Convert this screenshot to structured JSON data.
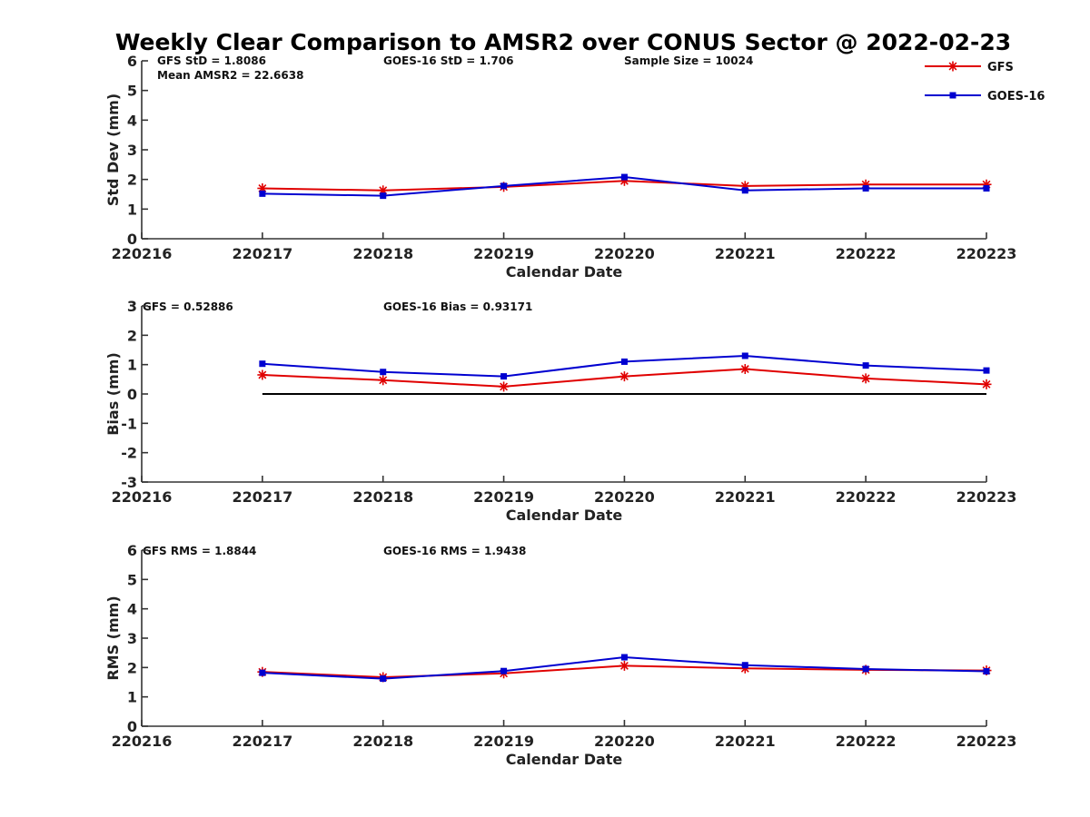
{
  "title": "Weekly Clear Comparison to AMSR2 over CONUS Sector @ 2022-02-23",
  "legend": [
    {
      "name": "GFS",
      "color": "#e00000",
      "marker": "star"
    },
    {
      "name": "GOES-16",
      "color": "#0000d0",
      "marker": "square"
    }
  ],
  "chart_data": [
    {
      "type": "line",
      "xlabel": "Calendar Date",
      "ylabel": "Std Dev (mm)",
      "x_ticks": [
        "220216",
        "220217",
        "220218",
        "220219",
        "220220",
        "220221",
        "220222",
        "220223"
      ],
      "ylim": [
        0,
        6
      ],
      "y_ticks": [
        "0",
        "1",
        "2",
        "3",
        "4",
        "5",
        "6"
      ],
      "annotations": [
        "GFS StD = 1.8086",
        "GOES-16 StD = 1.706",
        "Sample Size = 10024",
        "Mean AMSR2 = 22.6638"
      ],
      "reference_line": null,
      "series": [
        {
          "name": "GFS",
          "color": "#e00000",
          "marker": "star",
          "x": [
            "220217",
            "220218",
            "220219",
            "220220",
            "220221",
            "220222",
            "220223"
          ],
          "values": [
            1.7,
            1.63,
            1.75,
            1.95,
            1.78,
            1.83,
            1.83
          ]
        },
        {
          "name": "GOES-16",
          "color": "#0000d0",
          "marker": "square",
          "x": [
            "220217",
            "220218",
            "220219",
            "220220",
            "220221",
            "220222",
            "220223"
          ],
          "values": [
            1.52,
            1.45,
            1.78,
            2.08,
            1.63,
            1.7,
            1.7
          ]
        }
      ]
    },
    {
      "type": "line",
      "xlabel": "Calendar Date",
      "ylabel": "Bias (mm)",
      "x_ticks": [
        "220216",
        "220217",
        "220218",
        "220219",
        "220220",
        "220221",
        "220222",
        "220223"
      ],
      "ylim": [
        -3,
        3
      ],
      "y_ticks": [
        "-3",
        "-2",
        "-1",
        "0",
        "1",
        "2",
        "3"
      ],
      "annotations": [
        "GFS = 0.52886",
        "GOES-16 Bias  = 0.93171"
      ],
      "reference_line": {
        "y": 0,
        "color": "#000000",
        "x_from": "220217",
        "x_to": "220223"
      },
      "series": [
        {
          "name": "GFS",
          "color": "#e00000",
          "marker": "star",
          "x": [
            "220217",
            "220218",
            "220219",
            "220220",
            "220221",
            "220222",
            "220223"
          ],
          "values": [
            0.65,
            0.47,
            0.25,
            0.6,
            0.85,
            0.53,
            0.33
          ]
        },
        {
          "name": "GOES-16",
          "color": "#0000d0",
          "marker": "square",
          "x": [
            "220217",
            "220218",
            "220219",
            "220220",
            "220221",
            "220222",
            "220223"
          ],
          "values": [
            1.03,
            0.75,
            0.6,
            1.1,
            1.3,
            0.97,
            0.8
          ]
        }
      ]
    },
    {
      "type": "line",
      "xlabel": "Calendar Date",
      "ylabel": "RMS (mm)",
      "x_ticks": [
        "220216",
        "220217",
        "220218",
        "220219",
        "220220",
        "220221",
        "220222",
        "220223"
      ],
      "ylim": [
        0,
        6
      ],
      "y_ticks": [
        "0",
        "1",
        "2",
        "3",
        "4",
        "5",
        "6"
      ],
      "annotations": [
        "GFS RMS = 1.8844",
        "GOES-16 RMS = 1.9438"
      ],
      "reference_line": null,
      "series": [
        {
          "name": "GFS",
          "color": "#e00000",
          "marker": "star",
          "x": [
            "220217",
            "220218",
            "220219",
            "220220",
            "220221",
            "220222",
            "220223"
          ],
          "values": [
            1.85,
            1.67,
            1.8,
            2.06,
            1.97,
            1.92,
            1.9
          ]
        },
        {
          "name": "GOES-16",
          "color": "#0000d0",
          "marker": "square",
          "x": [
            "220217",
            "220218",
            "220219",
            "220220",
            "220221",
            "220222",
            "220223"
          ],
          "values": [
            1.82,
            1.62,
            1.88,
            2.35,
            2.08,
            1.95,
            1.87
          ]
        }
      ]
    }
  ]
}
